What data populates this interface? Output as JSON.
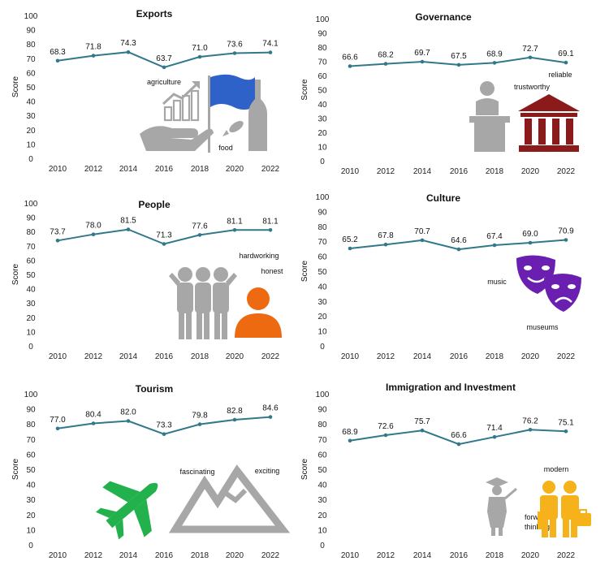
{
  "accent": "#31788a",
  "icon_colors": {
    "grey": "#a7a7a7",
    "blue": "#2f62c8",
    "darkred": "#8b1a1a",
    "purple": "#6b1fb0",
    "orange": "#ee6a10",
    "green": "#22b14c",
    "gold": "#f5b21b"
  },
  "chart_data": [
    {
      "type": "line",
      "title": "Exports",
      "xlabel": "",
      "ylabel": "Score",
      "ylim": [
        0,
        100
      ],
      "yticks": [
        "0",
        "10",
        "20",
        "30",
        "40",
        "50",
        "60",
        "70",
        "80",
        "90",
        "100"
      ],
      "x": [
        "2010",
        "2012",
        "2014",
        "2016",
        "2018",
        "2020",
        "2022"
      ],
      "values": [
        68.3,
        71.8,
        74.3,
        63.7,
        71.0,
        73.6,
        74.1
      ],
      "value_labels": [
        "68.3",
        "71.8",
        "74.3",
        "63.7",
        "71.0",
        "73.6",
        "74.1"
      ],
      "annotations": [
        "agriculture",
        "food"
      ],
      "icons": [
        "bar-chart-hand-icon",
        "flag-icon",
        "fish-icon",
        "wine-bottle-icon"
      ]
    },
    {
      "type": "line",
      "title": "Governance",
      "xlabel": "",
      "ylabel": "Score",
      "ylim": [
        0,
        100
      ],
      "yticks": [
        "0",
        "10",
        "20",
        "30",
        "40",
        "50",
        "60",
        "70",
        "80",
        "90",
        "100"
      ],
      "x": [
        "2010",
        "2012",
        "2014",
        "2016",
        "2018",
        "2020",
        "2022"
      ],
      "values": [
        66.6,
        68.2,
        69.7,
        67.5,
        68.9,
        72.7,
        69.1
      ],
      "value_labels": [
        "66.6",
        "68.2",
        "69.7",
        "67.5",
        "68.9",
        "72.7",
        "69.1"
      ],
      "annotations": [
        "reliable",
        "trustworthy"
      ],
      "icons": [
        "speaker-podium-icon",
        "government-building-icon"
      ]
    },
    {
      "type": "line",
      "title": "People",
      "xlabel": "",
      "ylabel": "Score",
      "ylim": [
        0,
        100
      ],
      "yticks": [
        "0",
        "10",
        "20",
        "30",
        "40",
        "50",
        "60",
        "70",
        "80",
        "90",
        "100"
      ],
      "x": [
        "2010",
        "2012",
        "2014",
        "2016",
        "2018",
        "2020",
        "2022"
      ],
      "values": [
        73.7,
        78.0,
        81.5,
        71.3,
        77.6,
        81.1,
        81.1
      ],
      "value_labels": [
        "73.7",
        "78.0",
        "81.5",
        "71.3",
        "77.6",
        "81.1",
        "81.1"
      ],
      "annotations": [
        "hardworking",
        "honest"
      ],
      "icons": [
        "group-of-people-icon",
        "person-icon"
      ]
    },
    {
      "type": "line",
      "title": "Culture",
      "xlabel": "",
      "ylabel": "Score",
      "ylim": [
        0,
        100
      ],
      "yticks": [
        "0",
        "10",
        "20",
        "30",
        "40",
        "50",
        "60",
        "70",
        "80",
        "90",
        "100"
      ],
      "x": [
        "2010",
        "2012",
        "2014",
        "2016",
        "2018",
        "2020",
        "2022"
      ],
      "values": [
        65.2,
        67.8,
        70.7,
        64.6,
        67.4,
        69.0,
        70.9
      ],
      "value_labels": [
        "65.2",
        "67.8",
        "70.7",
        "64.6",
        "67.4",
        "69.0",
        "70.9"
      ],
      "annotations": [
        "music",
        "museums"
      ],
      "icons": [
        "theatre-masks-icon"
      ]
    },
    {
      "type": "line",
      "title": "Tourism",
      "xlabel": "",
      "ylabel": "Score",
      "ylim": [
        0,
        100
      ],
      "yticks": [
        "0",
        "10",
        "20",
        "30",
        "40",
        "50",
        "60",
        "70",
        "80",
        "90",
        "100"
      ],
      "x": [
        "2010",
        "2012",
        "2014",
        "2016",
        "2018",
        "2020",
        "2022"
      ],
      "values": [
        77.0,
        80.4,
        82.0,
        73.3,
        79.8,
        82.8,
        84.6
      ],
      "value_labels": [
        "77.0",
        "80.4",
        "82.0",
        "73.3",
        "79.8",
        "82.8",
        "84.6"
      ],
      "annotations": [
        "fascinating",
        "exciting"
      ],
      "icons": [
        "airplane-icon",
        "mountains-icon"
      ]
    },
    {
      "type": "line",
      "title": "Immigration and Investment",
      "xlabel": "",
      "ylabel": "Score",
      "ylim": [
        0,
        100
      ],
      "yticks": [
        "0",
        "10",
        "20",
        "30",
        "40",
        "50",
        "60",
        "70",
        "80",
        "90",
        "100"
      ],
      "x": [
        "2010",
        "2012",
        "2014",
        "2016",
        "2018",
        "2020",
        "2022"
      ],
      "values": [
        68.9,
        72.6,
        75.7,
        66.6,
        71.4,
        76.2,
        75.1
      ],
      "value_labels": [
        "68.9",
        "72.6",
        "75.7",
        "66.6",
        "71.4",
        "76.2",
        "75.1"
      ],
      "annotations": [
        "modern",
        "forward thinking"
      ],
      "icons": [
        "graduate-icon",
        "business-people-icon"
      ]
    }
  ]
}
